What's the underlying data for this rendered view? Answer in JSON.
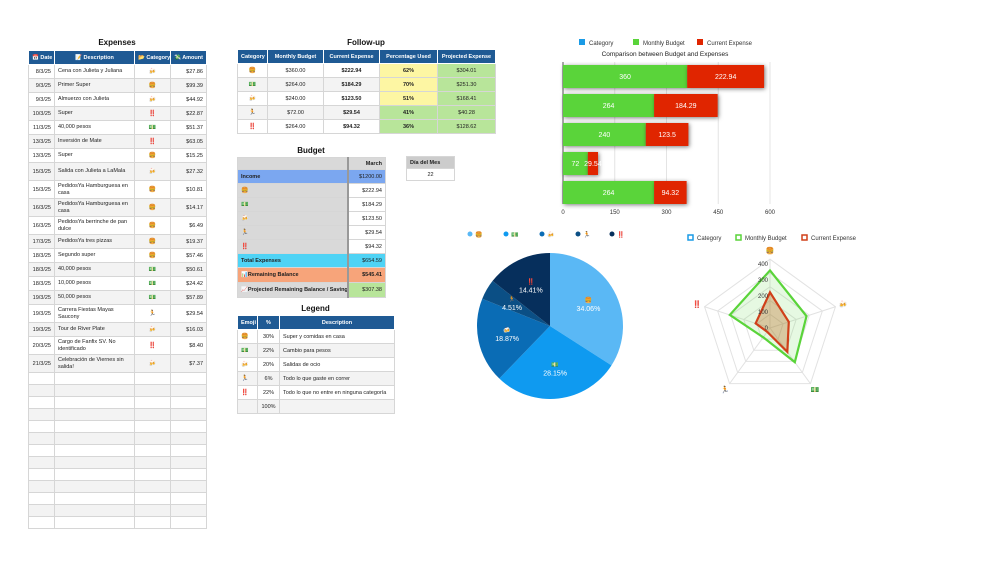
{
  "expenses": {
    "title": "Expenses",
    "headers": [
      "📅 Date",
      "📝 Description",
      "📂 Category",
      "💸 Amount"
    ],
    "rows": [
      [
        "8/3/25",
        "Cena con Julieta y Juliana",
        "🍻",
        "$27.86"
      ],
      [
        "9/3/25",
        "Primer Super",
        "🍔",
        "$99.39"
      ],
      [
        "9/3/25",
        "Almuerzo con Julieta",
        "🍻",
        "$44.92"
      ],
      [
        "10/3/25",
        "Super",
        "‼️",
        "$22.87"
      ],
      [
        "11/3/25",
        "40,000 pesos",
        "💵",
        "$51.37"
      ],
      [
        "13/3/25",
        "Inversión de Mate",
        "‼️",
        "$63.05"
      ],
      [
        "13/3/25",
        "Super",
        "🍔",
        "$15.25"
      ],
      [
        "15/3/25",
        "Salida con Julieta a LaMala",
        "🍻",
        "$27.32"
      ],
      [
        "15/3/25",
        "PedidosYa Hamburguesa en casa",
        "🍔",
        "$10.81"
      ],
      [
        "16/3/25",
        "PedidosYa Hamburguesa en casa",
        "🍔",
        "$14.17"
      ],
      [
        "16/3/25",
        "PedidosYa berrinche de pan dulce",
        "🍔",
        "$6.49"
      ],
      [
        "17/3/25",
        "PedidosYa tres pizzas",
        "🍔",
        "$19.37"
      ],
      [
        "18/3/25",
        "Segundo super",
        "🍔",
        "$57.46"
      ],
      [
        "18/3/25",
        " 40,000 pesos",
        "💵",
        "$50.61"
      ],
      [
        "18/3/25",
        "10,000 pesos",
        "💵",
        "$24.42"
      ],
      [
        "19/3/25",
        "50,000 pesos",
        "💵",
        "$57.89"
      ],
      [
        "19/3/25",
        "Carrera Fiestas Mayas Saucony",
        "🏃",
        "$29.54"
      ],
      [
        "19/3/25",
        "Tour de River Plate",
        "🍻",
        "$16.03"
      ],
      [
        "20/3/25",
        "Cargo de Fanfix SV. No identificado",
        "‼️",
        "$8.40"
      ],
      [
        "21/3/25",
        "Celebración de Viernes sin salida!",
        "🍻",
        "$7.37"
      ]
    ]
  },
  "followup": {
    "title": "Follow-up",
    "headers": [
      "Category",
      "Monthly Budget",
      "Current Expense",
      "Percentage Used",
      "Projected Expense"
    ],
    "rows": [
      [
        "🍔",
        "$360.00",
        "$222.94",
        "62%",
        "$304.01"
      ],
      [
        "💵",
        "$264.00",
        "$184.29",
        "70%",
        "$251.30"
      ],
      [
        "🍻",
        "$240.00",
        "$123.50",
        "51%",
        "$168.41"
      ],
      [
        "🏃",
        "$72.00",
        "$29.54",
        "41%",
        "$40.28"
      ],
      [
        "‼️",
        "$264.00",
        "$94.32",
        "36%",
        "$128.62"
      ]
    ]
  },
  "budget": {
    "title": "Budget",
    "column": "March",
    "rows": [
      [
        "Income",
        "$1200.00"
      ],
      [
        "🍔",
        "$222.94"
      ],
      [
        "💵",
        "$184.29"
      ],
      [
        "🍻",
        "$123.50"
      ],
      [
        "🏃",
        "$29.54"
      ],
      [
        "‼️",
        "$94.32"
      ],
      [
        "Total Expenses",
        "$654.59"
      ],
      [
        "📊Remaining Balance",
        "$545.41"
      ],
      [
        "📈Projected Remaining Balance / Savings",
        "$307.38"
      ]
    ]
  },
  "day": {
    "label": "Día del Mes",
    "value": "22"
  },
  "legend": {
    "title": "Legend",
    "headers": [
      "Emoji",
      "%",
      "Description"
    ],
    "rows": [
      [
        "🍔",
        "30%",
        "Super y comidas en casa"
      ],
      [
        "💵",
        "22%",
        "Cambio para pesos"
      ],
      [
        "🍻",
        "20%",
        "Salidas de ocio"
      ],
      [
        "🏃",
        "6%",
        "Todo lo que gaste en correr"
      ],
      [
        "‼️",
        "22%",
        "Todo lo que no entre en ninguna categoría"
      ],
      [
        "",
        "100%",
        ""
      ]
    ]
  },
  "chart_data": [
    {
      "type": "bar",
      "orientation": "horizontal",
      "stacked": true,
      "title": "Comparison between Budget and Expenses",
      "legend": [
        "Category",
        "Monthly Budget",
        "Current Expense"
      ],
      "legend_position": "top",
      "categories": [
        "🍔",
        "💵",
        "🍻",
        "🏃",
        "‼️"
      ],
      "series": [
        {
          "name": "Monthly Budget",
          "values": [
            360,
            264,
            240,
            72,
            264
          ],
          "color": "#5ad43a"
        },
        {
          "name": "Current Expense",
          "values": [
            222.94,
            184.29,
            123.5,
            29.54,
            94.32
          ],
          "color": "#e02500"
        }
      ],
      "data_labels": [
        [
          "360",
          "264",
          "240",
          "72",
          "264"
        ],
        [
          "222.94",
          "184.29",
          "123.5",
          "29.54",
          "94.32"
        ]
      ],
      "xlim": [
        0,
        600
      ],
      "xticks": [
        "0",
        "150",
        "300",
        "450",
        "600"
      ],
      "grid": true
    },
    {
      "type": "pie",
      "categories": [
        "🍔",
        "💵",
        "🍻",
        "🏃",
        "‼️"
      ],
      "values": [
        34.06,
        28.15,
        18.87,
        4.51,
        14.41
      ],
      "labels": [
        "34.06%",
        "28.15%",
        "18.87%",
        "4.51%",
        "14.41%"
      ],
      "colors": [
        "#5ab8f5",
        "#0f9af0",
        "#0a6cb5",
        "#0b4f85",
        "#062f5c"
      ],
      "legend_position": "top"
    },
    {
      "type": "radar",
      "legend": [
        "Category",
        "Monthly Budget",
        "Current Expense"
      ],
      "legend_position": "top",
      "axes": [
        "🍔",
        "🍻",
        "💵",
        "🏃",
        "‼️"
      ],
      "series": [
        {
          "name": "Monthly Budget",
          "values": [
            360,
            240,
            264,
            72,
            264
          ],
          "color": "#5ad43a"
        },
        {
          "name": "Current Expense",
          "values": [
            222.94,
            123.5,
            184.29,
            29.54,
            94.32
          ],
          "color": "#d0401a"
        }
      ],
      "rlim": [
        0,
        400
      ],
      "rticks": [
        "0",
        "100",
        "200",
        "300",
        "400"
      ]
    }
  ]
}
